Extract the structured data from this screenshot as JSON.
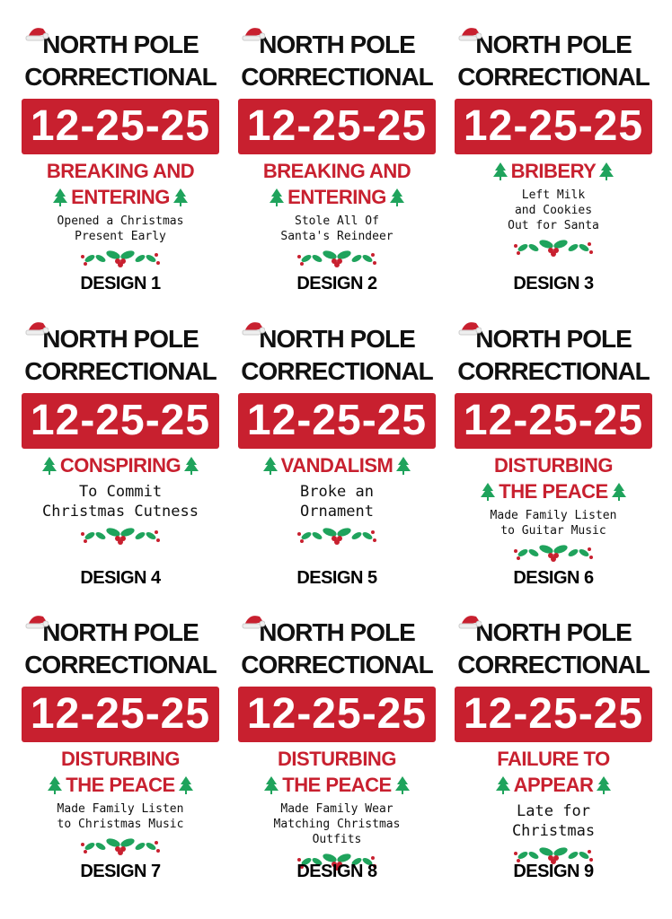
{
  "colors": {
    "red": "#c8202f",
    "green": "#1fa35c",
    "black": "#111111"
  },
  "designs": [
    {
      "title1": "NORTH POLE",
      "title2": "CORRECTIONAL",
      "date": "12-25-25",
      "crime": [
        "BREAKING AND",
        "ENTERING"
      ],
      "description": [
        "Opened a Christmas",
        "Present Early"
      ],
      "label": "DESIGN 1"
    },
    {
      "title1": "NORTH POLE",
      "title2": "CORRECTIONAL",
      "date": "12-25-25",
      "crime": [
        "BREAKING AND",
        "ENTERING"
      ],
      "description": [
        "Stole All Of",
        "Santa's Reindeer"
      ],
      "label": "DESIGN 2"
    },
    {
      "title1": "NORTH POLE",
      "title2": "CORRECTIONAL",
      "date": "12-25-25",
      "crime": [
        "BRIBERY"
      ],
      "description": [
        "Left Milk",
        "and Cookies",
        "Out for Santa"
      ],
      "label": "DESIGN 3"
    },
    {
      "title1": "NORTH POLE",
      "title2": "CORRECTIONAL",
      "date": "12-25-25",
      "crime": [
        "CONSPIRING"
      ],
      "description": [
        "To Commit",
        "Christmas Cutness"
      ],
      "label": "DESIGN 4",
      "big": true
    },
    {
      "title1": "NORTH POLE",
      "title2": "CORRECTIONAL",
      "date": "12-25-25",
      "crime": [
        "VANDALISM"
      ],
      "description": [
        "Broke an",
        "Ornament"
      ],
      "label": "DESIGN 5",
      "big": true
    },
    {
      "title1": "NORTH POLE",
      "title2": "CORRECTIONAL",
      "date": "12-25-25",
      "crime": [
        "DISTURBING",
        "THE PEACE"
      ],
      "description": [
        "Made Family Listen",
        "to Guitar Music"
      ],
      "label": "DESIGN 6"
    },
    {
      "title1": "NORTH POLE",
      "title2": "CORRECTIONAL",
      "date": "12-25-25",
      "crime": [
        "DISTURBING",
        "THE PEACE"
      ],
      "description": [
        "Made Family Listen",
        "to Christmas Music"
      ],
      "label": "DESIGN 7"
    },
    {
      "title1": "NORTH POLE",
      "title2": "CORRECTIONAL",
      "date": "12-25-25",
      "crime": [
        "DISTURBING",
        "THE PEACE"
      ],
      "description": [
        "Made Family Wear",
        "Matching Christmas",
        "Outfits"
      ],
      "label": "DESIGN 8"
    },
    {
      "title1": "NORTH POLE",
      "title2": "CORRECTIONAL",
      "date": "12-25-25",
      "crime": [
        "FAILURE TO",
        "APPEAR"
      ],
      "description": [
        "Late for",
        "Christmas"
      ],
      "label": "DESIGN 9",
      "big": true
    }
  ]
}
